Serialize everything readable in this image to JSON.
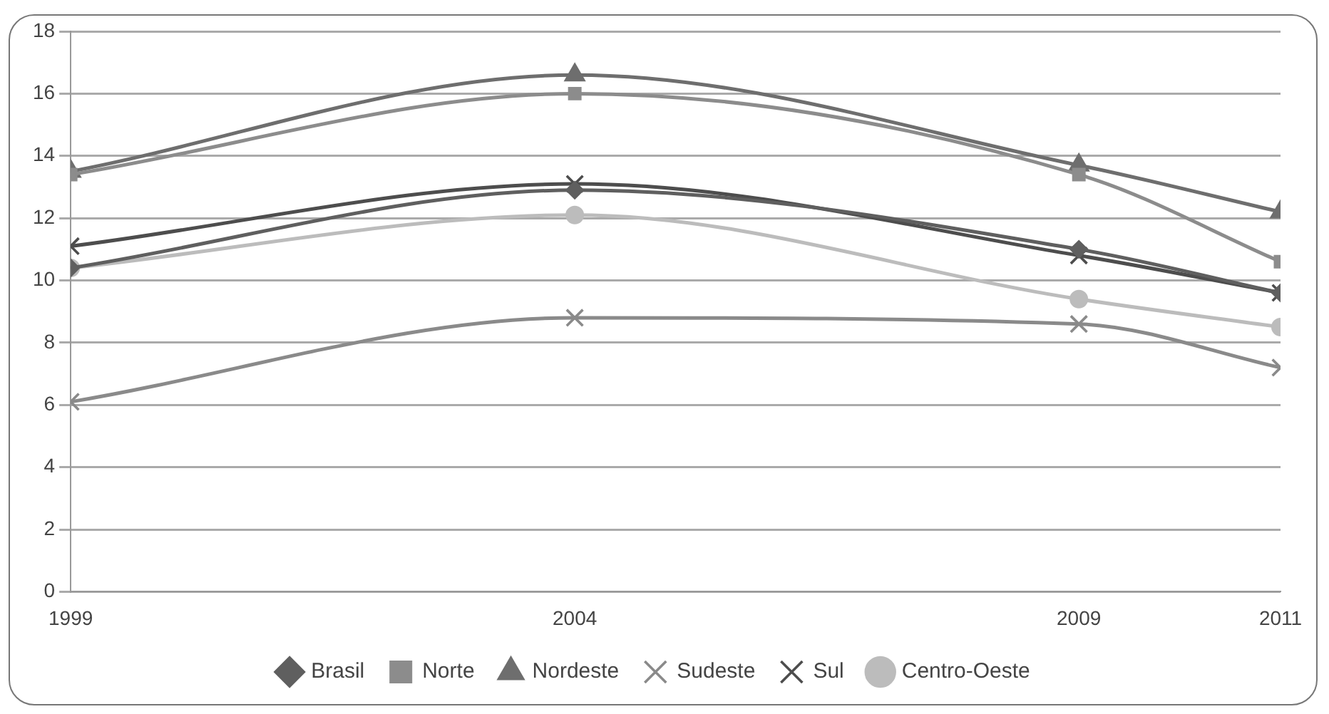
{
  "chart_data": {
    "type": "line",
    "x": [
      1999,
      2004,
      2009,
      2011
    ],
    "xlim": [
      1999,
      2011
    ],
    "xticks": [
      1999,
      2004,
      2009,
      2011
    ],
    "ylim": [
      0,
      18
    ],
    "yticks": [
      0,
      2,
      4,
      6,
      8,
      10,
      12,
      14,
      16,
      18
    ],
    "grid": "y",
    "legend": "bottom",
    "series": [
      {
        "name": "Brasil",
        "color": "#5f5f5f",
        "marker": "diamond",
        "values": [
          10.4,
          12.9,
          11.0,
          9.6
        ]
      },
      {
        "name": "Norte",
        "color": "#8c8c8c",
        "marker": "square",
        "values": [
          13.4,
          16.0,
          13.4,
          10.6
        ]
      },
      {
        "name": "Nordeste",
        "color": "#6e6e6e",
        "marker": "triangle",
        "values": [
          13.5,
          16.6,
          13.7,
          12.2
        ]
      },
      {
        "name": "Sudeste",
        "color": "#8a8a8a",
        "marker": "cross",
        "values": [
          6.1,
          8.8,
          8.6,
          7.2
        ]
      },
      {
        "name": "Sul",
        "color": "#4d4d4d",
        "marker": "cross",
        "values": [
          11.1,
          13.1,
          10.8,
          9.6
        ]
      },
      {
        "name": "Centro-Oeste",
        "color": "#bcbcbc",
        "marker": "circle",
        "values": [
          10.4,
          12.1,
          9.4,
          8.5
        ]
      }
    ]
  }
}
